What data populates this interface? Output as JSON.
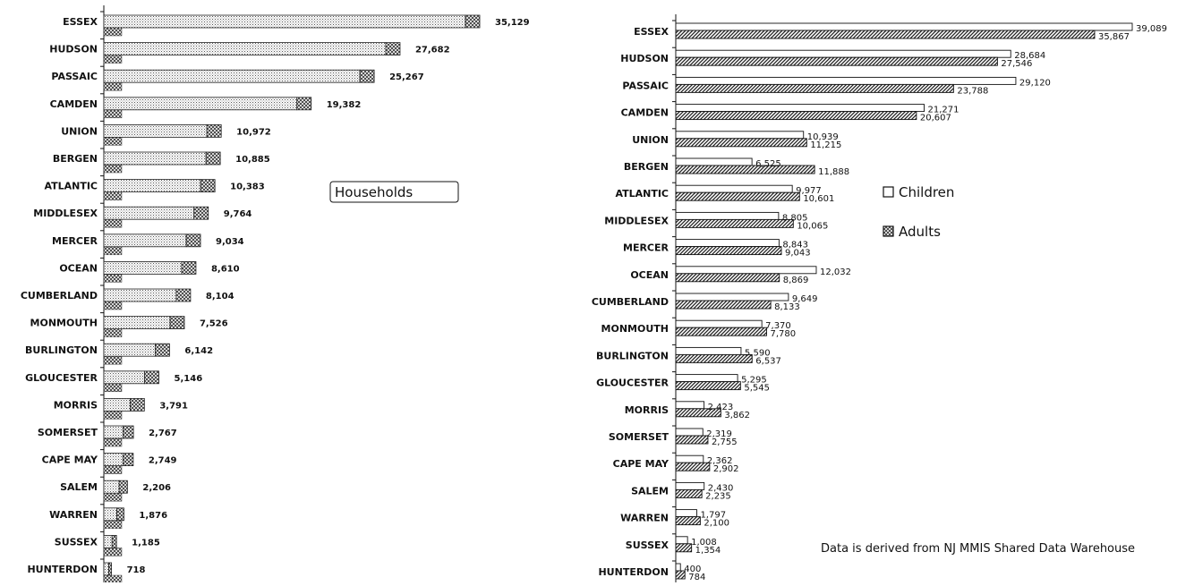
{
  "chart_data": [
    {
      "type": "bar",
      "orientation": "horizontal",
      "title": "",
      "legend_box": "Households",
      "categories": [
        "ESSEX",
        "HUDSON",
        "PASSAIC",
        "CAMDEN",
        "UNION",
        "BERGEN",
        "ATLANTIC",
        "MIDDLESEX",
        "MERCER",
        "OCEAN",
        "CUMBERLAND",
        "MONMOUTH",
        "BURLINGTON",
        "GLOUCESTER",
        "MORRIS",
        "SOMERSET",
        "CAPE MAY",
        "SALEM",
        "WARREN",
        "SUSSEX",
        "HUNTERDON"
      ],
      "values": [
        35129,
        27682,
        25267,
        19382,
        10972,
        10885,
        10383,
        9764,
        9034,
        8610,
        8104,
        7526,
        6142,
        5146,
        3791,
        2767,
        2749,
        2206,
        1876,
        1185,
        718
      ],
      "value_labels": [
        "35,129",
        "27,682",
        "25,267",
        "19,382",
        "10,972",
        "10,885",
        "10,383",
        "9,764",
        "9,034",
        "8,610",
        "8,104",
        "7,526",
        "6,142",
        "5,146",
        "3,791",
        "2,767",
        "2,749",
        "2,206",
        "1,876",
        "1,185",
        "718"
      ],
      "grid": false
    },
    {
      "type": "bar",
      "orientation": "horizontal",
      "title": "",
      "categories": [
        "ESSEX",
        "HUDSON",
        "PASSAIC",
        "CAMDEN",
        "UNION",
        "BERGEN",
        "ATLANTIC",
        "MIDDLESEX",
        "MERCER",
        "OCEAN",
        "CUMBERLAND",
        "MONMOUTH",
        "BURLINGTON",
        "GLOUCESTER",
        "MORRIS",
        "SOMERSET",
        "CAPE MAY",
        "SALEM",
        "WARREN",
        "SUSSEX",
        "HUNTERDON"
      ],
      "series": [
        {
          "name": "Children",
          "values": [
            39089,
            28684,
            29120,
            21271,
            10939,
            6525,
            9977,
            8805,
            8843,
            12032,
            9649,
            7370,
            5590,
            5295,
            2423,
            2319,
            2362,
            2430,
            1797,
            1008,
            400
          ],
          "labels": [
            "39,089",
            "28,684",
            "29,120",
            "21,271",
            "10,939",
            "6,525",
            "9,977",
            "8,805",
            "8,843",
            "12,032",
            "9,649",
            "7,370",
            "5,590",
            "5,295",
            "2,423",
            "2,319",
            "2,362",
            "2,430",
            "1,797",
            "1,008",
            "400"
          ]
        },
        {
          "name": "Adults",
          "values": [
            35867,
            27546,
            23788,
            20607,
            11215,
            11888,
            10601,
            10065,
            9043,
            8869,
            8133,
            7780,
            6537,
            5545,
            3862,
            2755,
            2902,
            2235,
            2100,
            1354,
            784
          ],
          "labels": [
            "35,867",
            "27,546",
            "23,788",
            "20,607",
            "11,215",
            "11,888",
            "10,601",
            "10,065",
            "9,043",
            "8,869",
            "8,133",
            "7,780",
            "6,537",
            "5,545",
            "3,862",
            "2,755",
            "2,902",
            "2,235",
            "2,100",
            "1,354",
            "784"
          ]
        }
      ],
      "legend": {
        "position": "right",
        "entries": [
          "Children",
          "Adults"
        ]
      },
      "note": "Data is derived from NJ MMIS Shared Data Warehouse",
      "grid": false
    }
  ]
}
